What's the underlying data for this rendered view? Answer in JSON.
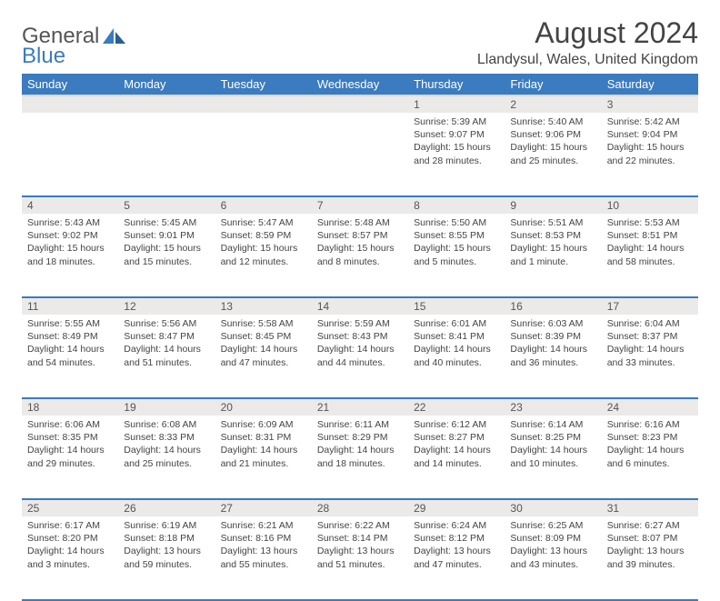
{
  "brand": {
    "part1": "General",
    "part2": "Blue"
  },
  "title": "August 2024",
  "location": "Llandysul, Wales, United Kingdom",
  "colors": {
    "header_bg": "#3b7bbf",
    "header_text": "#ffffff",
    "daynum_bg": "#eceae8",
    "row_divider": "#3b7bbf",
    "body_text": "#444444",
    "page_bg": "#ffffff"
  },
  "weekday_labels": [
    "Sunday",
    "Monday",
    "Tuesday",
    "Wednesday",
    "Thursday",
    "Friday",
    "Saturday"
  ],
  "weeks": [
    {
      "nums": [
        "",
        "",
        "",
        "",
        "1",
        "2",
        "3"
      ],
      "cells": [
        null,
        null,
        null,
        null,
        {
          "sunrise": "Sunrise: 5:39 AM",
          "sunset": "Sunset: 9:07 PM",
          "daylight": "Daylight: 15 hours and 28 minutes."
        },
        {
          "sunrise": "Sunrise: 5:40 AM",
          "sunset": "Sunset: 9:06 PM",
          "daylight": "Daylight: 15 hours and 25 minutes."
        },
        {
          "sunrise": "Sunrise: 5:42 AM",
          "sunset": "Sunset: 9:04 PM",
          "daylight": "Daylight: 15 hours and 22 minutes."
        }
      ]
    },
    {
      "nums": [
        "4",
        "5",
        "6",
        "7",
        "8",
        "9",
        "10"
      ],
      "cells": [
        {
          "sunrise": "Sunrise: 5:43 AM",
          "sunset": "Sunset: 9:02 PM",
          "daylight": "Daylight: 15 hours and 18 minutes."
        },
        {
          "sunrise": "Sunrise: 5:45 AM",
          "sunset": "Sunset: 9:01 PM",
          "daylight": "Daylight: 15 hours and 15 minutes."
        },
        {
          "sunrise": "Sunrise: 5:47 AM",
          "sunset": "Sunset: 8:59 PM",
          "daylight": "Daylight: 15 hours and 12 minutes."
        },
        {
          "sunrise": "Sunrise: 5:48 AM",
          "sunset": "Sunset: 8:57 PM",
          "daylight": "Daylight: 15 hours and 8 minutes."
        },
        {
          "sunrise": "Sunrise: 5:50 AM",
          "sunset": "Sunset: 8:55 PM",
          "daylight": "Daylight: 15 hours and 5 minutes."
        },
        {
          "sunrise": "Sunrise: 5:51 AM",
          "sunset": "Sunset: 8:53 PM",
          "daylight": "Daylight: 15 hours and 1 minute."
        },
        {
          "sunrise": "Sunrise: 5:53 AM",
          "sunset": "Sunset: 8:51 PM",
          "daylight": "Daylight: 14 hours and 58 minutes."
        }
      ]
    },
    {
      "nums": [
        "11",
        "12",
        "13",
        "14",
        "15",
        "16",
        "17"
      ],
      "cells": [
        {
          "sunrise": "Sunrise: 5:55 AM",
          "sunset": "Sunset: 8:49 PM",
          "daylight": "Daylight: 14 hours and 54 minutes."
        },
        {
          "sunrise": "Sunrise: 5:56 AM",
          "sunset": "Sunset: 8:47 PM",
          "daylight": "Daylight: 14 hours and 51 minutes."
        },
        {
          "sunrise": "Sunrise: 5:58 AM",
          "sunset": "Sunset: 8:45 PM",
          "daylight": "Daylight: 14 hours and 47 minutes."
        },
        {
          "sunrise": "Sunrise: 5:59 AM",
          "sunset": "Sunset: 8:43 PM",
          "daylight": "Daylight: 14 hours and 44 minutes."
        },
        {
          "sunrise": "Sunrise: 6:01 AM",
          "sunset": "Sunset: 8:41 PM",
          "daylight": "Daylight: 14 hours and 40 minutes."
        },
        {
          "sunrise": "Sunrise: 6:03 AM",
          "sunset": "Sunset: 8:39 PM",
          "daylight": "Daylight: 14 hours and 36 minutes."
        },
        {
          "sunrise": "Sunrise: 6:04 AM",
          "sunset": "Sunset: 8:37 PM",
          "daylight": "Daylight: 14 hours and 33 minutes."
        }
      ]
    },
    {
      "nums": [
        "18",
        "19",
        "20",
        "21",
        "22",
        "23",
        "24"
      ],
      "cells": [
        {
          "sunrise": "Sunrise: 6:06 AM",
          "sunset": "Sunset: 8:35 PM",
          "daylight": "Daylight: 14 hours and 29 minutes."
        },
        {
          "sunrise": "Sunrise: 6:08 AM",
          "sunset": "Sunset: 8:33 PM",
          "daylight": "Daylight: 14 hours and 25 minutes."
        },
        {
          "sunrise": "Sunrise: 6:09 AM",
          "sunset": "Sunset: 8:31 PM",
          "daylight": "Daylight: 14 hours and 21 minutes."
        },
        {
          "sunrise": "Sunrise: 6:11 AM",
          "sunset": "Sunset: 8:29 PM",
          "daylight": "Daylight: 14 hours and 18 minutes."
        },
        {
          "sunrise": "Sunrise: 6:12 AM",
          "sunset": "Sunset: 8:27 PM",
          "daylight": "Daylight: 14 hours and 14 minutes."
        },
        {
          "sunrise": "Sunrise: 6:14 AM",
          "sunset": "Sunset: 8:25 PM",
          "daylight": "Daylight: 14 hours and 10 minutes."
        },
        {
          "sunrise": "Sunrise: 6:16 AM",
          "sunset": "Sunset: 8:23 PM",
          "daylight": "Daylight: 14 hours and 6 minutes."
        }
      ]
    },
    {
      "nums": [
        "25",
        "26",
        "27",
        "28",
        "29",
        "30",
        "31"
      ],
      "cells": [
        {
          "sunrise": "Sunrise: 6:17 AM",
          "sunset": "Sunset: 8:20 PM",
          "daylight": "Daylight: 14 hours and 3 minutes."
        },
        {
          "sunrise": "Sunrise: 6:19 AM",
          "sunset": "Sunset: 8:18 PM",
          "daylight": "Daylight: 13 hours and 59 minutes."
        },
        {
          "sunrise": "Sunrise: 6:21 AM",
          "sunset": "Sunset: 8:16 PM",
          "daylight": "Daylight: 13 hours and 55 minutes."
        },
        {
          "sunrise": "Sunrise: 6:22 AM",
          "sunset": "Sunset: 8:14 PM",
          "daylight": "Daylight: 13 hours and 51 minutes."
        },
        {
          "sunrise": "Sunrise: 6:24 AM",
          "sunset": "Sunset: 8:12 PM",
          "daylight": "Daylight: 13 hours and 47 minutes."
        },
        {
          "sunrise": "Sunrise: 6:25 AM",
          "sunset": "Sunset: 8:09 PM",
          "daylight": "Daylight: 13 hours and 43 minutes."
        },
        {
          "sunrise": "Sunrise: 6:27 AM",
          "sunset": "Sunset: 8:07 PM",
          "daylight": "Daylight: 13 hours and 39 minutes."
        }
      ]
    }
  ]
}
